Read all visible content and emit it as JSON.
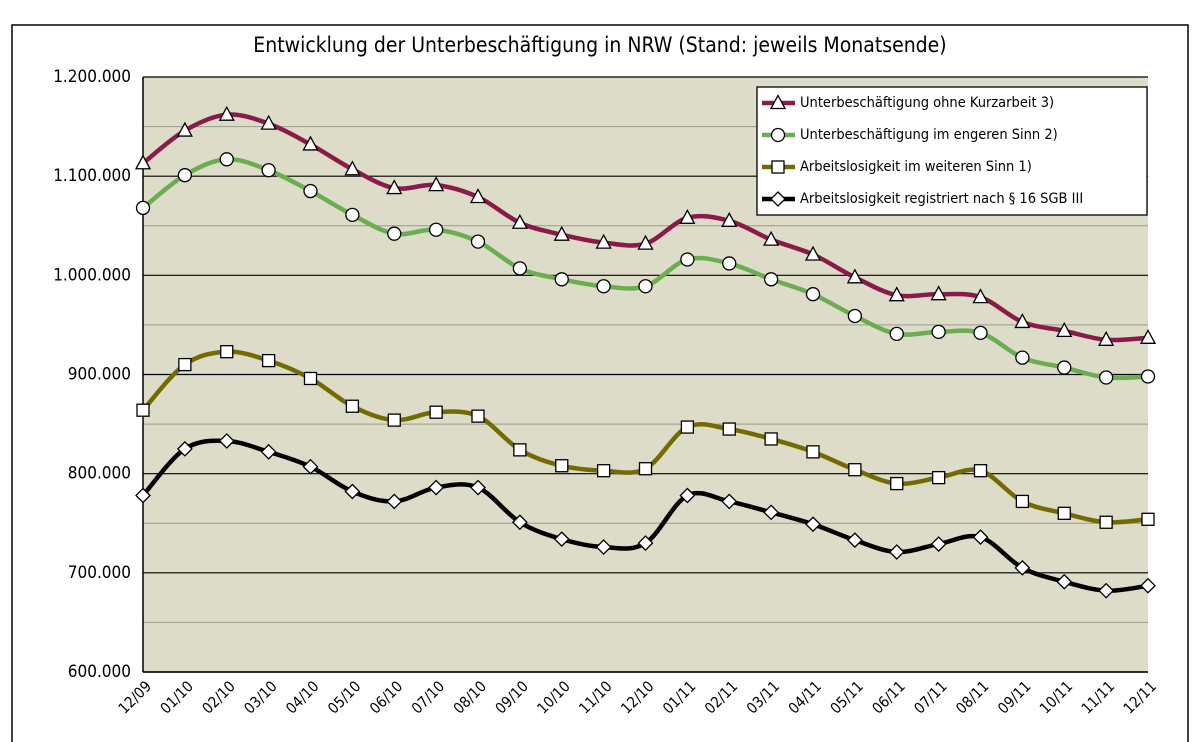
{
  "chart_data": {
    "type": "line",
    "title": "Entwicklung der Unterbeschäftigung in NRW (Stand: jeweils Monatsende)",
    "categories": [
      "12/09",
      "01/10",
      "02/10",
      "03/10",
      "04/10",
      "05/10",
      "06/10",
      "07/10",
      "08/10",
      "09/10",
      "10/10",
      "11/10",
      "12/10",
      "01/11",
      "02/11",
      "03/11",
      "04/11",
      "05/11",
      "06/11",
      "07/11",
      "08/11",
      "09/11",
      "10/11",
      "11/11",
      "12/11"
    ],
    "series": [
      {
        "name": "Unterbeschäftigung ohne Kurzarbeit 3)",
        "color": "#8b1a4b",
        "marker": "triangle",
        "values": [
          1113000,
          1146000,
          1162000,
          1153000,
          1132000,
          1107000,
          1088000,
          1091000,
          1079000,
          1053000,
          1041000,
          1033000,
          1032000,
          1058000,
          1055000,
          1036000,
          1021000,
          998000,
          980000,
          981000,
          978000,
          953000,
          944000,
          935000,
          937000
        ]
      },
      {
        "name": "Unterbeschäftigung im engeren Sinn 2)",
        "color": "#6aae4f",
        "marker": "circle",
        "values": [
          1068000,
          1101000,
          1117000,
          1106000,
          1085000,
          1061000,
          1042000,
          1046000,
          1034000,
          1007000,
          996000,
          989000,
          989000,
          1016000,
          1012000,
          996000,
          981000,
          959000,
          941000,
          943000,
          942000,
          917000,
          907000,
          897000,
          898000
        ]
      },
      {
        "name": "Arbeitslosigkeit im weiteren Sinn 1)",
        "color": "#736b00",
        "marker": "square",
        "values": [
          864000,
          910000,
          923000,
          914000,
          896000,
          868000,
          854000,
          862000,
          858000,
          824000,
          808000,
          803000,
          805000,
          847000,
          845000,
          835000,
          822000,
          804000,
          790000,
          796000,
          803000,
          772000,
          760000,
          751000,
          754000
        ]
      },
      {
        "name": "Arbeitslosigkeit registriert nach § 16 SGB III",
        "color": "#000000",
        "marker": "diamond",
        "values": [
          778000,
          825000,
          833000,
          822000,
          807000,
          782000,
          772000,
          786000,
          786000,
          751000,
          734000,
          726000,
          730000,
          778000,
          772000,
          761000,
          749000,
          733000,
          721000,
          729000,
          736000,
          705000,
          691000,
          682000,
          687000
        ]
      }
    ],
    "ylim": [
      600000,
      1200000
    ],
    "yticks": [
      {
        "value": 600000,
        "label": "600.000"
      },
      {
        "value": 700000,
        "label": "700.000"
      },
      {
        "value": 800000,
        "label": "800.000"
      },
      {
        "value": 900000,
        "label": "900.000"
      },
      {
        "value": 1000000,
        "label": "1.000.000"
      },
      {
        "value": 1100000,
        "label": "1.100.000"
      },
      {
        "value": 1200000,
        "label": "1.200.000"
      }
    ],
    "yminorticks": [
      650000,
      750000,
      850000,
      950000,
      1050000,
      1150000
    ],
    "grid": true,
    "smooth": true,
    "legend": "upper right"
  }
}
